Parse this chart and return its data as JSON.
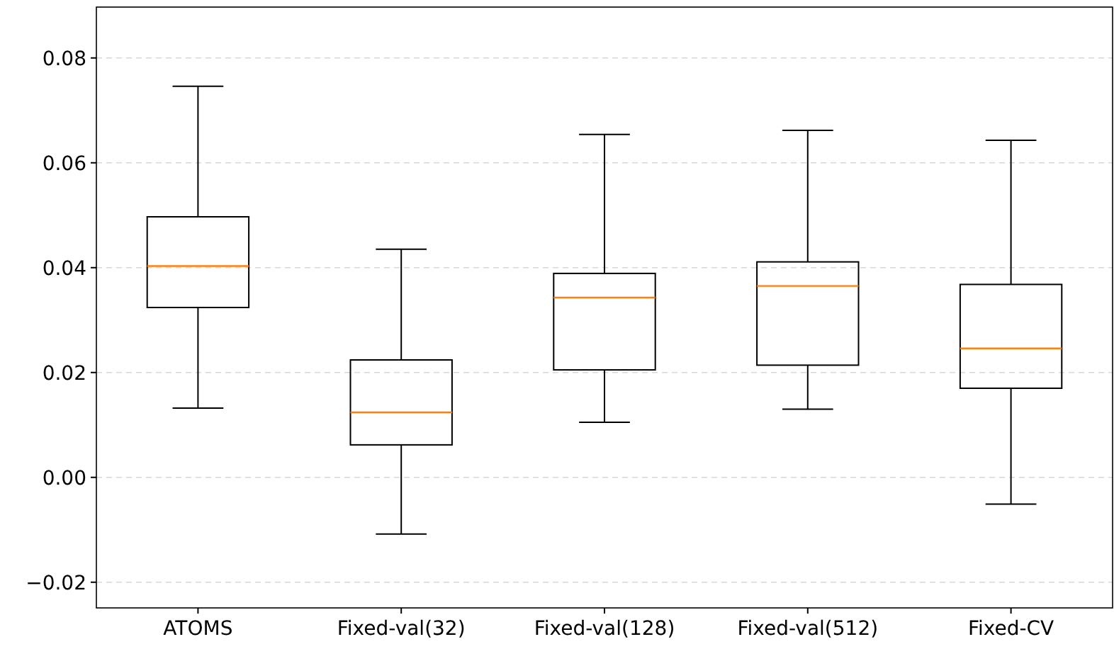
{
  "chart_data": {
    "type": "box",
    "categories": [
      "ATOMS",
      "Fixed-val(32)",
      "Fixed-val(128)",
      "Fixed-val(512)",
      "Fixed-CV"
    ],
    "boxes": [
      {
        "low": 0.0132,
        "q1": 0.0324,
        "median": 0.0403,
        "q3": 0.0497,
        "high": 0.0746
      },
      {
        "low": -0.0108,
        "q1": 0.0062,
        "median": 0.0124,
        "q3": 0.0224,
        "high": 0.0435
      },
      {
        "low": 0.0105,
        "q1": 0.0205,
        "median": 0.0343,
        "q3": 0.0389,
        "high": 0.0654
      },
      {
        "low": 0.013,
        "q1": 0.0214,
        "median": 0.0365,
        "q3": 0.0411,
        "high": 0.0662
      },
      {
        "low": -0.0051,
        "q1": 0.017,
        "median": 0.0246,
        "q3": 0.0368,
        "high": 0.0643
      }
    ],
    "color": "#000000",
    "ylim": [
      -0.0249,
      0.0897
    ],
    "yticks": [
      {
        "value": -0.02,
        "label": "−0.02"
      },
      {
        "value": 0,
        "label": "0.00"
      },
      {
        "value": 0.02,
        "label": "0.02"
      },
      {
        "value": 0.04,
        "label": "0.04"
      },
      {
        "value": 0.06,
        "label": "0.06"
      },
      {
        "value": 0.08,
        "label": "0.08"
      }
    ],
    "grid": "y"
  }
}
